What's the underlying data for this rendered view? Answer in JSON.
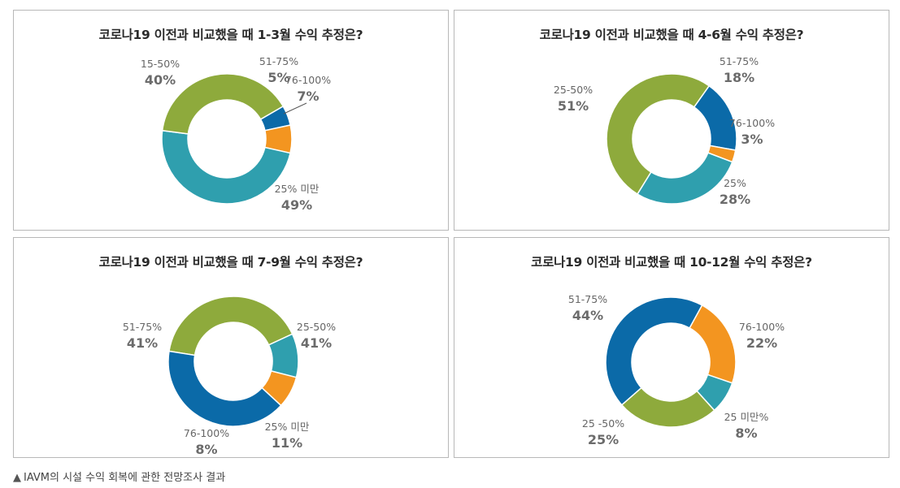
{
  "footnote": {
    "marker": "▲",
    "text": "IAVM의 시설 수익 회복에 관한 전망조사 결과"
  },
  "colors": {
    "green": "#8eaa3c",
    "blue": "#0b6aa8",
    "orange": "#f39520",
    "teal": "#2f9fae"
  },
  "chart_data": [
    {
      "type": "pie",
      "title": "코로나19 이전과 비교했을 때 1-3월 수익 추정은?",
      "slices": [
        {
          "label": "51-75%",
          "value": 5,
          "display": "5%",
          "color": "#0b6aa8"
        },
        {
          "label": "76-100%",
          "value": 7,
          "display": "7%",
          "color": "#f39520"
        },
        {
          "label": "25% 미만",
          "value": 49,
          "display": "49%",
          "color": "#2f9fae"
        },
        {
          "label": "15-50%",
          "value": 40,
          "display": "40%",
          "color": "#8eaa3c"
        }
      ]
    },
    {
      "type": "pie",
      "title": "코로나19 이전과 비교했을 때 4-6월 수익 추정은?",
      "slices": [
        {
          "label": "51-75%",
          "value": 18,
          "display": "18%",
          "color": "#0b6aa8"
        },
        {
          "label": "76-100%",
          "value": 3,
          "display": "3%",
          "color": "#f39520"
        },
        {
          "label": "25%",
          "value": 28,
          "display": "28%",
          "color": "#2f9fae"
        },
        {
          "label": "25-50%",
          "value": 51,
          "display": "51%",
          "color": "#8eaa3c"
        }
      ]
    },
    {
      "type": "pie",
      "title": "코로나19 이전과 비교했을 때 7-9월 수익 추정은?",
      "slices": [
        {
          "label": "25-50%",
          "value": 41,
          "display": "41%",
          "color": "#8eaa3c"
        },
        {
          "label": "25% 미만",
          "value": 11,
          "display": "11%",
          "color": "#2f9fae"
        },
        {
          "label": "76-100%",
          "value": 8,
          "display": "8%",
          "color": "#f39520"
        },
        {
          "label": "51-75%",
          "value": 41,
          "display": "41%",
          "color": "#0b6aa8"
        }
      ]
    },
    {
      "type": "pie",
      "title": "코로나19 이전과 비교했을 때 10-12월 수익 추정은?",
      "slices": [
        {
          "label": "76-100%",
          "value": 22,
          "display": "22%",
          "color": "#f39520"
        },
        {
          "label": "25 미만%",
          "value": 8,
          "display": "8%",
          "color": "#2f9fae"
        },
        {
          "label": "25 -50%",
          "value": 25,
          "display": "25%",
          "color": "#8eaa3c"
        },
        {
          "label": "51-75%",
          "value": 44,
          "display": "44%",
          "color": "#0b6aa8"
        }
      ]
    }
  ]
}
